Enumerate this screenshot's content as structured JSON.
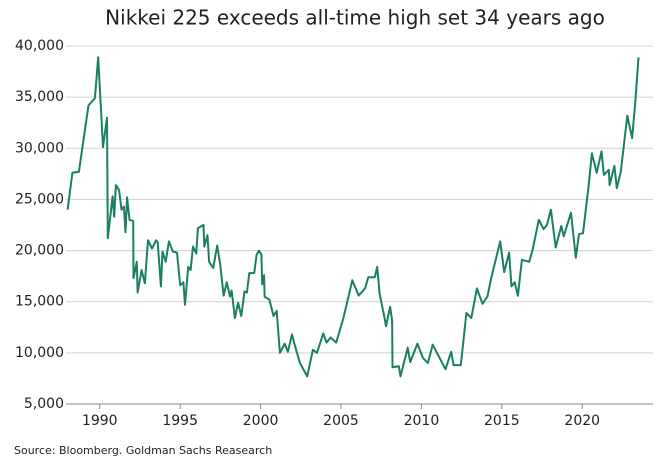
{
  "chart_data": {
    "type": "line",
    "title": "Nikkei 225 exceeds all-time high set 34 years ago",
    "source": "Source: Bloomberg. Goldman Sachs Reasearch",
    "xlim": [
      1987.9,
      2024.4
    ],
    "xticks": [
      1990,
      1995,
      2000,
      2005,
      2010,
      2015,
      2020
    ],
    "ylim": [
      5000,
      40000
    ],
    "yticks": [
      {
        "value": 5000,
        "label": "5,000"
      },
      {
        "value": 10000,
        "label": "10,000"
      },
      {
        "value": 15000,
        "label": "15,000"
      },
      {
        "value": 20000,
        "label": "20,000"
      },
      {
        "value": 25000,
        "label": "25,000"
      },
      {
        "value": 30000,
        "label": "30,000"
      },
      {
        "value": 35000,
        "label": "35,000"
      },
      {
        "value": 40000,
        "label": "40,000"
      }
    ],
    "grid": true,
    "series": [
      {
        "color": "#1a7f64",
        "x": [
          1988.0,
          1988.3,
          1988.7,
          1989.3,
          1989.7,
          1989.9,
          1990.2,
          1990.45,
          1990.5,
          1990.8,
          1990.9,
          1991.0,
          1991.2,
          1991.35,
          1991.5,
          1991.6,
          1991.7,
          1991.85,
          1992.08,
          1992.1,
          1992.3,
          1992.35,
          1992.6,
          1992.8,
          1993.0,
          1993.25,
          1993.5,
          1993.6,
          1993.8,
          1993.9,
          1994.1,
          1994.3,
          1994.55,
          1994.8,
          1995.0,
          1995.2,
          1995.3,
          1995.5,
          1995.65,
          1995.8,
          1996.0,
          1996.1,
          1996.45,
          1996.5,
          1996.7,
          1996.8,
          1997.05,
          1997.3,
          1997.5,
          1997.7,
          1997.9,
          1998.1,
          1998.2,
          1998.4,
          1998.6,
          1998.8,
          1999.0,
          1999.15,
          1999.3,
          1999.6,
          1999.75,
          1999.9,
          2000.05,
          2000.1,
          2000.22,
          2000.25,
          2000.55,
          2000.8,
          2001.0,
          2001.2,
          2001.5,
          2001.7,
          2001.95,
          2002.15,
          2002.45,
          2002.9,
          2003.25,
          2003.5,
          2003.9,
          2004.1,
          2004.35,
          2004.7,
          2005.15,
          2005.7,
          2006.1,
          2006.5,
          2006.7,
          2007.1,
          2007.25,
          2007.4,
          2007.7,
          2007.8,
          2008.05,
          2008.18,
          2008.2,
          2008.6,
          2008.7,
          2009.15,
          2009.3,
          2009.75,
          2010.1,
          2010.4,
          2010.7,
          2011.2,
          2011.5,
          2011.85,
          2012.0,
          2012.45,
          2012.8,
          2013.1,
          2013.45,
          2013.8,
          2014.1,
          2014.35,
          2014.9,
          2015.15,
          2015.45,
          2015.6,
          2015.8,
          2016.0,
          2016.25,
          2016.7,
          2016.9,
          2017.3,
          2017.6,
          2017.8,
          2018.05,
          2018.35,
          2018.7,
          2018.85,
          2019.3,
          2019.6,
          2019.8,
          2020.05,
          2020.4,
          2020.6,
          2020.9,
          2021.2,
          2021.35,
          2021.65,
          2021.7,
          2022.0,
          2022.15,
          2022.4,
          2022.8,
          2023.1,
          2023.3,
          2023.5
        ],
        "values": [
          24000,
          27600,
          27700,
          34200,
          34900,
          38900,
          30100,
          33000,
          21200,
          25300,
          23300,
          26400,
          25900,
          24000,
          24300,
          21800,
          25200,
          23000,
          22900,
          17300,
          18900,
          15900,
          18100,
          16800,
          21000,
          20200,
          21000,
          20800,
          16500,
          19900,
          18900,
          20900,
          19900,
          19800,
          16600,
          16900,
          14700,
          18400,
          18100,
          20400,
          19700,
          22200,
          22500,
          20400,
          21500,
          18900,
          18300,
          20500,
          18500,
          15600,
          16900,
          15500,
          16100,
          13400,
          14900,
          13600,
          16000,
          15900,
          17800,
          17800,
          19600,
          20000,
          19600,
          16700,
          17600,
          15500,
          15200,
          13600,
          14100,
          10000,
          10900,
          10100,
          11800,
          10600,
          9000,
          7700,
          10300,
          10000,
          11900,
          11000,
          11500,
          11000,
          13400,
          17100,
          15600,
          16300,
          17400,
          17400,
          18400,
          15800,
          13500,
          12600,
          14500,
          13200,
          8600,
          8700,
          7700,
          10500,
          9100,
          10900,
          9500,
          9000,
          10800,
          9300,
          8400,
          10100,
          8800,
          8800,
          13900,
          13400,
          16300,
          14800,
          15500,
          17400,
          20900,
          17900,
          19800,
          16500,
          16900,
          15600,
          19100,
          18900,
          20000,
          23000,
          22100,
          22500,
          24000,
          20300,
          22400,
          21400,
          23700,
          19300,
          21600,
          21700,
          26400,
          29500,
          27600,
          29700,
          27400,
          27900,
          26400,
          28300,
          26100,
          27700,
          33200,
          31000,
          34500,
          38900
        ]
      }
    ]
  }
}
